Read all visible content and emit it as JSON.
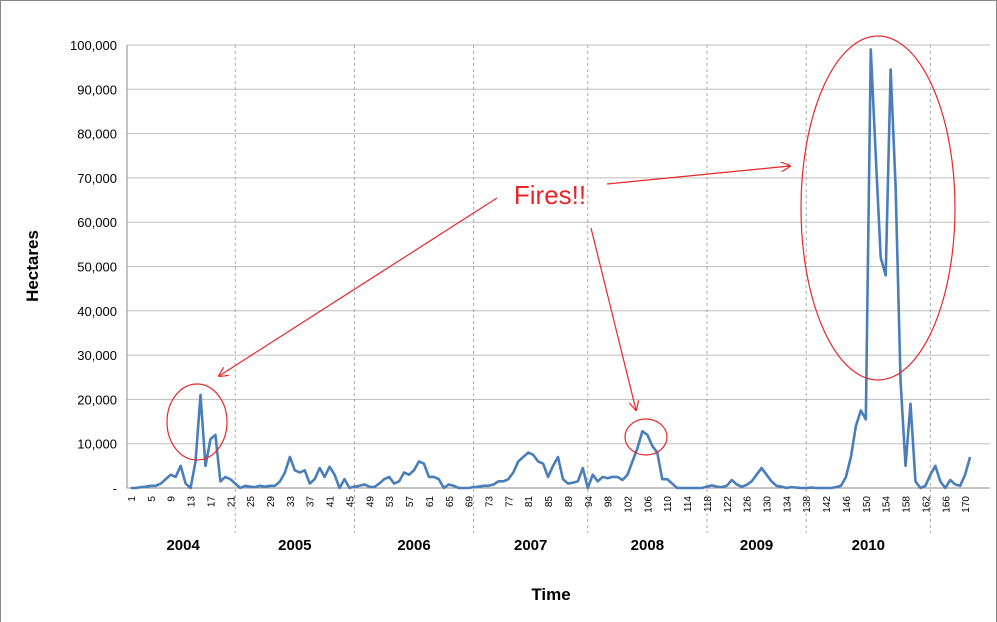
{
  "chart_data": {
    "type": "line",
    "y_label": "Hectares",
    "x_label": "Time",
    "annotation": "Fires!!",
    "color": "#4a7ebb",
    "annotation_color": "#e8262a",
    "grid": true,
    "ylim": [
      0,
      100000
    ],
    "yticks": [
      {
        "value": 0,
        "label": "-"
      },
      {
        "value": 10000,
        "label": "10,000"
      },
      {
        "value": 20000,
        "label": "20,000"
      },
      {
        "value": 30000,
        "label": "30,000"
      },
      {
        "value": 40000,
        "label": "40,000"
      },
      {
        "value": 50000,
        "label": "50,000"
      },
      {
        "value": 60000,
        "label": "60,000"
      },
      {
        "value": 70000,
        "label": "70,000"
      },
      {
        "value": 80000,
        "label": "80,000"
      },
      {
        "value": 90000,
        "label": "90,000"
      },
      {
        "value": 100000,
        "label": "100,000"
      }
    ],
    "categories": [
      "1",
      null,
      null,
      null,
      "5",
      null,
      null,
      null,
      "9",
      null,
      null,
      null,
      "13",
      null,
      null,
      null,
      "17",
      null,
      null,
      null,
      "21",
      null,
      null,
      null,
      "25",
      null,
      null,
      null,
      "29",
      null,
      null,
      null,
      "33",
      null,
      null,
      null,
      "37",
      null,
      null,
      null,
      "41",
      null,
      null,
      null,
      "45",
      null,
      null,
      null,
      "49",
      null,
      null,
      null,
      "53",
      null,
      null,
      null,
      "57",
      null,
      null,
      null,
      "61",
      null,
      null,
      null,
      "65",
      null,
      null,
      null,
      "69",
      null,
      null,
      null,
      "73",
      null,
      null,
      null,
      "77",
      null,
      null,
      null,
      "81",
      null,
      null,
      null,
      "85",
      null,
      null,
      null,
      "89",
      null,
      null,
      null,
      "94",
      null,
      null,
      null,
      "98",
      null,
      null,
      null,
      "102",
      null,
      null,
      null,
      "106",
      null,
      null,
      null,
      "110",
      null,
      null,
      null,
      "114",
      null,
      null,
      null,
      "118",
      null,
      null,
      null,
      "122",
      null,
      null,
      null,
      "126",
      null,
      null,
      null,
      "130",
      null,
      null,
      null,
      "134",
      null,
      null,
      null,
      "138",
      null,
      null,
      null,
      "142",
      null,
      null,
      null,
      "146",
      null,
      null,
      null,
      "150",
      null,
      null,
      null,
      "154",
      null,
      null,
      null,
      "158",
      null,
      null,
      null,
      "162",
      null,
      null,
      null,
      "166",
      null,
      null,
      null,
      "170",
      null
    ],
    "values": [
      0,
      0,
      200,
      300,
      500,
      500,
      1000,
      2000,
      3000,
      2500,
      5000,
      1000,
      0,
      6000,
      21000,
      5000,
      11000,
      12000,
      1500,
      2500,
      2000,
      1000,
      0,
      500,
      300,
      200,
      500,
      300,
      500,
      500,
      1500,
      3500,
      7000,
      4000,
      3500,
      4000,
      1000,
      2000,
      4500,
      2500,
      4800,
      3000,
      0,
      2000,
      0,
      300,
      500,
      800,
      300,
      200,
      1000,
      2000,
      2500,
      1000,
      1500,
      3500,
      3000,
      4000,
      6000,
      5500,
      2500,
      2500,
      2000,
      0,
      800,
      500,
      0,
      0,
      0,
      200,
      300,
      500,
      500,
      800,
      1500,
      1500,
      2000,
      3500,
      6000,
      7000,
      8000,
      7500,
      6000,
      5500,
      2500,
      5000,
      7000,
      2000,
      1000,
      1200,
      1500,
      4500,
      0,
      3000,
      1500,
      2500,
      2200,
      2500,
      2500,
      1800,
      3000,
      6000,
      9000,
      12800,
      12000,
      9500,
      8000,
      2000,
      2000,
      1000,
      0,
      0,
      0,
      0,
      0,
      0,
      300,
      600,
      300,
      200,
      500,
      1800,
      800,
      300,
      700,
      1500,
      3000,
      4500,
      3000,
      1500,
      500,
      300,
      0,
      200,
      100,
      0,
      0,
      100,
      0,
      0,
      0,
      0,
      200,
      500,
      2500,
      7000,
      14000,
      17500,
      15500,
      99000,
      75000,
      52000,
      48000,
      94500,
      68000,
      24000,
      5000,
      19000,
      1500,
      0,
      500,
      3000,
      5000,
      1500,
      0,
      1800,
      800,
      500,
      3000,
      7000
    ],
    "year_groups": [
      {
        "label": "2004",
        "start": 0,
        "end": 21
      },
      {
        "label": "2005",
        "start": 21,
        "end": 45
      },
      {
        "label": "2006",
        "start": 45,
        "end": 69
      },
      {
        "label": "2007",
        "start": 69,
        "end": 92
      },
      {
        "label": "2008",
        "start": 92,
        "end": 116
      },
      {
        "label": "2009",
        "start": 116,
        "end": 136
      },
      {
        "label": "2010",
        "start": 136,
        "end": 161
      }
    ]
  }
}
